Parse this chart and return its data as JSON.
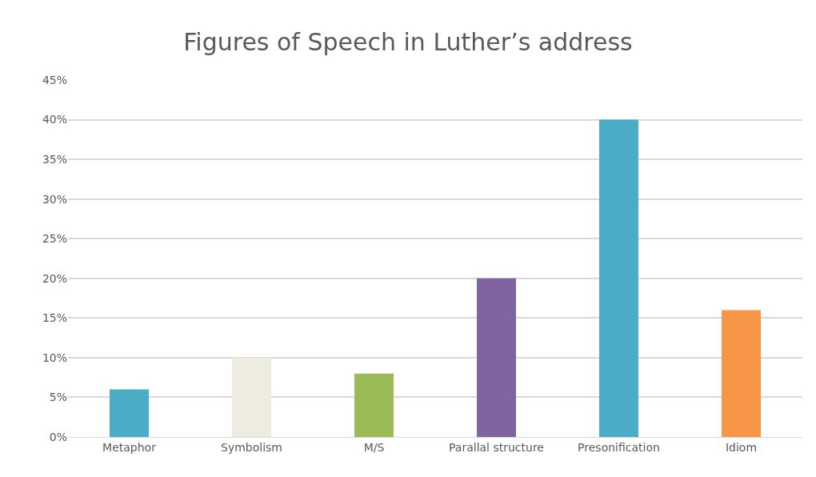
{
  "chart_data": {
    "type": "bar",
    "title": "Figures of Speech in Luther’s address",
    "categories": [
      "Metaphor",
      "Symbolism",
      "M/S",
      "Parallal structure",
      "Presonification",
      "Idiom"
    ],
    "values": [
      6,
      10,
      8,
      20,
      40,
      16
    ],
    "colors": [
      "#4bacc6",
      "#eeece1",
      "#9bbb59",
      "#8064a2",
      "#4bacc6",
      "#f79646"
    ],
    "ylim": [
      0,
      45
    ],
    "yticks": [
      {
        "value": 0,
        "label": "0%"
      },
      {
        "value": 5,
        "label": "5%"
      },
      {
        "value": 10,
        "label": "10%"
      },
      {
        "value": 15,
        "label": "15%"
      },
      {
        "value": 20,
        "label": "20%"
      },
      {
        "value": 25,
        "label": "25%"
      },
      {
        "value": 30,
        "label": "30%"
      },
      {
        "value": 35,
        "label": "35%"
      },
      {
        "value": 40,
        "label": "40%"
      },
      {
        "value": 45,
        "label": "45%"
      }
    ],
    "grid": "y"
  }
}
